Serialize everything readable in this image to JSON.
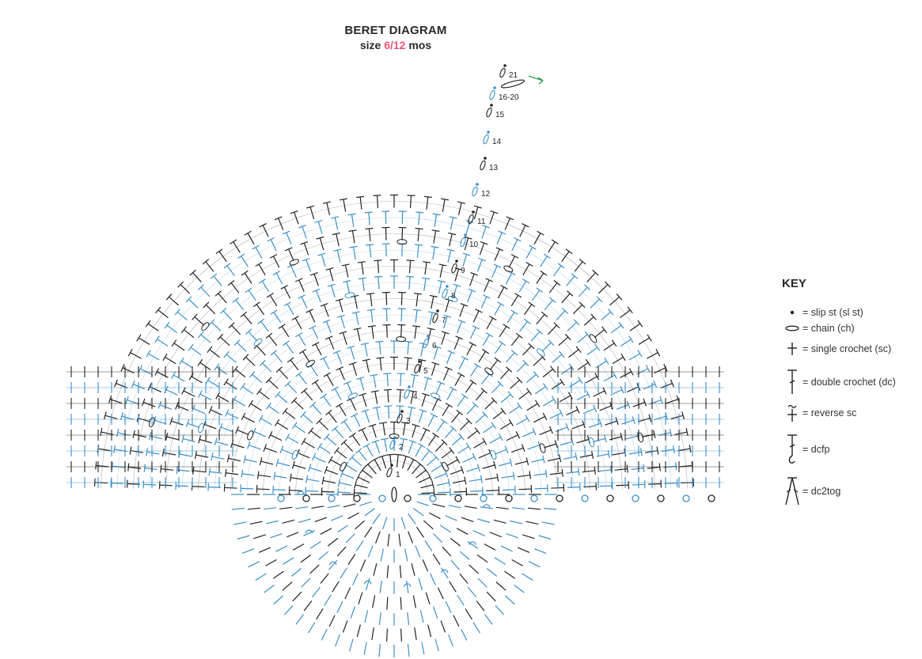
{
  "header": {
    "title": "BERET DIAGRAM",
    "size_prefix": "size",
    "size_value": "6/12",
    "size_suffix": "mos"
  },
  "colors": {
    "accent": "#e8567a",
    "black_rows": "#222222",
    "blue_rows": "#3d8fc9",
    "arrow": "#2e9e4f"
  },
  "row_labels": [
    "1",
    "2",
    "3",
    "4",
    "5",
    "6",
    "7",
    "8",
    "9",
    "10",
    "11",
    "12",
    "13",
    "14",
    "15",
    "16-20",
    "21"
  ],
  "key": {
    "heading": "KEY",
    "items": [
      {
        "icon": "slip-st-icon",
        "label": "= slip st (sl st)"
      },
      {
        "icon": "chain-icon",
        "label": "= chain (ch)"
      },
      {
        "icon": "single-crochet-icon",
        "label": "= single crochet (sc)"
      },
      {
        "icon": "double-crochet-icon",
        "label": "= double crochet (dc)"
      },
      {
        "icon": "reverse-sc-icon",
        "label": "= reverse sc"
      },
      {
        "icon": "dcfp-icon",
        "label": "= dcfp"
      },
      {
        "icon": "dc2tog-icon",
        "label": "= dc2tog"
      }
    ]
  }
}
